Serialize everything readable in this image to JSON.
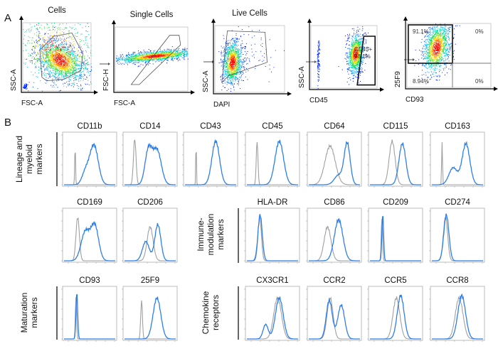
{
  "panel_a": {
    "label": "A",
    "plots": [
      {
        "title": "Cells",
        "xlabel": "FSC-A",
        "ylabel": "SSC-A"
      },
      {
        "title": "Single Cells",
        "xlabel": "FSC-A",
        "ylabel": "FSC-H"
      },
      {
        "title": "Live Cells",
        "xlabel": "DAPI",
        "ylabel": "SSC-A"
      },
      {
        "title": "",
        "xlabel": "CD45",
        "ylabel": "SSC-A",
        "gate_label": "CD45+",
        "gate_value": "98.1%"
      },
      {
        "title": "",
        "xlabel": "CD93",
        "ylabel": "25F9",
        "quadrants": [
          "91.1%",
          "0%",
          "8.94%",
          "0%"
        ]
      }
    ]
  },
  "panel_b": {
    "label": "B",
    "row_labels": [
      [
        "Lineage and",
        "myeloid",
        "markers"
      ],
      [
        "Immune-",
        "modulation",
        "markers"
      ],
      [
        "Maturation",
        "markers"
      ],
      [
        "Chemokine",
        "receptors"
      ]
    ],
    "colors": {
      "control": "#a0a0a0",
      "stained": "#2f7fe8"
    },
    "histograms": [
      {
        "title": "CD11b",
        "control": [
          [
            0.3,
            0.05,
            0.8
          ]
        ],
        "stained": [
          [
            2.5,
            0.5,
            0.82
          ],
          [
            1.5,
            0.4,
            0.25
          ]
        ]
      },
      {
        "title": "CD14",
        "control": [
          [
            0.2,
            0.15,
            0.95
          ]
        ],
        "stained": [
          [
            1.8,
            0.4,
            0.7
          ],
          [
            2.8,
            0.5,
            0.72
          ]
        ]
      },
      {
        "title": "CD43",
        "control": [
          [
            0.3,
            0.04,
            0.92
          ]
        ],
        "stained": [
          [
            2.6,
            0.45,
            0.9
          ]
        ]
      },
      {
        "title": "CD45",
        "control": [
          [
            0.2,
            0.1,
            0.9
          ]
        ],
        "stained": [
          [
            2.8,
            0.5,
            0.9
          ]
        ]
      },
      {
        "title": "CD64",
        "control": [
          [
            1.5,
            0.6,
            0.8
          ]
        ],
        "stained": [
          [
            3.5,
            0.35,
            0.85
          ],
          [
            2.5,
            0.5,
            0.2
          ]
        ]
      },
      {
        "title": "CD115",
        "control": [
          [
            1.6,
            0.35,
            0.9
          ]
        ],
        "stained": [
          [
            2.8,
            0.4,
            0.85
          ]
        ]
      },
      {
        "title": "CD163",
        "control": [
          [
            0.2,
            0.05,
            0.9
          ]
        ],
        "stained": [
          [
            1.5,
            0.5,
            0.35
          ],
          [
            3.0,
            0.45,
            0.85
          ]
        ]
      },
      {
        "title": "CD169",
        "control": [
          [
            0.6,
            0.2,
            0.9
          ]
        ],
        "stained": [
          [
            1.5,
            0.5,
            0.6
          ],
          [
            2.6,
            0.45,
            0.72
          ]
        ]
      },
      {
        "title": "CD206",
        "control": [
          [
            2.0,
            0.35,
            0.7
          ]
        ],
        "stained": [
          [
            1.5,
            0.4,
            0.4
          ],
          [
            2.9,
            0.35,
            0.75
          ]
        ]
      },
      {
        "title": "HLA-DR",
        "control": [
          [
            0.5,
            0.2,
            0.9
          ]
        ],
        "stained": [
          [
            0.55,
            0.25,
            0.95
          ]
        ]
      },
      {
        "title": "CD86",
        "control": [
          [
            1.2,
            0.4,
            0.7
          ]
        ],
        "stained": [
          [
            2.5,
            0.5,
            0.85
          ]
        ]
      },
      {
        "title": "CD209",
        "control": [
          [
            0.4,
            0.08,
            0.9
          ]
        ],
        "stained": [
          [
            0.5,
            0.1,
            0.95
          ]
        ]
      },
      {
        "title": "CD274",
        "control": [
          [
            0.6,
            0.25,
            0.9
          ]
        ],
        "stained": [
          [
            0.7,
            0.3,
            0.95
          ]
        ]
      },
      {
        "title": "CD93",
        "control": [
          [
            0.4,
            0.07,
            0.9
          ]
        ],
        "stained": [
          [
            0.5,
            0.1,
            0.95
          ]
        ]
      },
      {
        "title": "25F9",
        "control": [
          [
            1.0,
            0.1,
            0.8
          ]
        ],
        "stained": [
          [
            2.8,
            0.45,
            0.85
          ]
        ]
      },
      {
        "title": "CX3CR1",
        "control": [
          [
            2.6,
            0.45,
            0.85
          ]
        ],
        "stained": [
          [
            1.2,
            0.3,
            0.3
          ],
          [
            2.8,
            0.45,
            0.85
          ]
        ]
      },
      {
        "title": "CCR2",
        "control": [
          [
            1.5,
            0.35,
            0.85
          ]
        ],
        "stained": [
          [
            1.4,
            0.35,
            0.8
          ],
          [
            2.8,
            0.4,
            0.7
          ]
        ]
      },
      {
        "title": "CCR5",
        "control": [
          [
            2.1,
            0.4,
            0.85
          ]
        ],
        "stained": [
          [
            2.6,
            0.4,
            0.9
          ]
        ]
      },
      {
        "title": "CCR8",
        "control": [
          [
            2.2,
            0.45,
            0.85
          ]
        ],
        "stained": [
          [
            2.5,
            0.45,
            0.9
          ]
        ]
      }
    ]
  }
}
